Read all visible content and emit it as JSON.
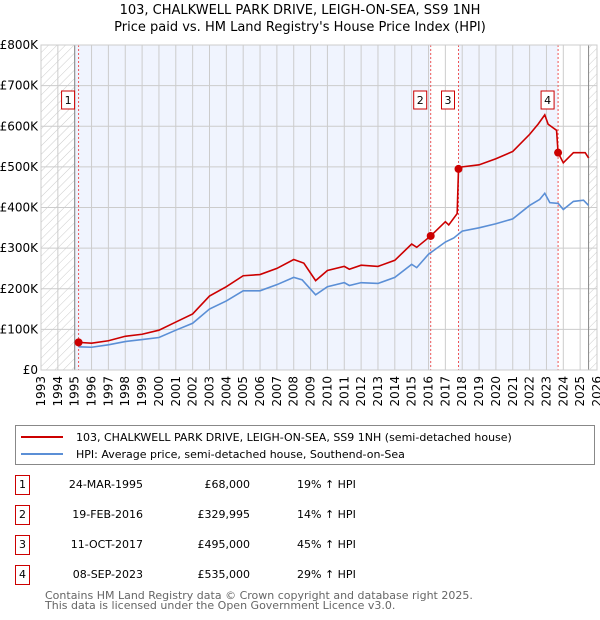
{
  "title": "103, CHALKWELL PARK DRIVE, LEIGH-ON-SEA, SS9 1NH",
  "subtitle": "Price paid vs. HM Land Registry's House Price Index (HPI)",
  "colors": {
    "property": "#cc0000",
    "hpi": "#5b8fd6",
    "shade": "#f0f4fe"
  },
  "chart_data": {
    "type": "line",
    "xlim": [
      1993,
      2026
    ],
    "ylim": [
      0,
      800000
    ],
    "x_ticks": [
      "1993",
      "1994",
      "1995",
      "1996",
      "1997",
      "1998",
      "1999",
      "2000",
      "2001",
      "2002",
      "2003",
      "2004",
      "2005",
      "2006",
      "2007",
      "2008",
      "2009",
      "2010",
      "2011",
      "2012",
      "2013",
      "2014",
      "2015",
      "2016",
      "2017",
      "2018",
      "2019",
      "2020",
      "2021",
      "2022",
      "2023",
      "2024",
      "2025",
      "2026"
    ],
    "y_ticks": [
      {
        "v": 0,
        "label": "£0"
      },
      {
        "v": 100000,
        "label": "£100K"
      },
      {
        "v": 200000,
        "label": "£200K"
      },
      {
        "v": 300000,
        "label": "£300K"
      },
      {
        "v": 400000,
        "label": "£400K"
      },
      {
        "v": 500000,
        "label": "£500K"
      },
      {
        "v": 600000,
        "label": "£600K"
      },
      {
        "v": 700000,
        "label": "£700K"
      },
      {
        "v": 800000,
        "label": "£800K"
      }
    ],
    "series": [
      {
        "name": "103, CHALKWELL PARK DRIVE, LEIGH-ON-SEA, SS9 1NH (semi-detached house)",
        "color": "#cc0000",
        "x": [
          1995.23,
          1996,
          1997,
          1998,
          1999,
          2000,
          2001,
          2002,
          2003,
          2004,
          2005,
          2006,
          2007,
          2008,
          2008.6,
          2009.3,
          2010,
          2011,
          2011.3,
          2012,
          2013,
          2014,
          2015,
          2015.3,
          2016.13,
          2017,
          2017.2,
          2017.7,
          2017.78,
          2018,
          2019,
          2020,
          2021,
          2022,
          2022.5,
          2022.9,
          2023.1,
          2023.6,
          2023.69,
          2024,
          2024.6,
          2025.3,
          2025.5
        ],
        "y": [
          68000,
          66000,
          72000,
          83000,
          88000,
          98000,
          118000,
          138000,
          182000,
          205000,
          232000,
          235000,
          250000,
          272000,
          263000,
          220000,
          245000,
          255000,
          248000,
          258000,
          255000,
          270000,
          310000,
          302000,
          329995,
          365000,
          357000,
          385000,
          495000,
          500000,
          505000,
          520000,
          538000,
          580000,
          605000,
          628000,
          605000,
          590000,
          535000,
          510000,
          535000,
          535000,
          522000
        ]
      },
      {
        "name": "HPI: Average price, semi-detached house, Southend-on-Sea",
        "color": "#5b8fd6",
        "x": [
          1995.23,
          1996,
          1997,
          1998,
          1999,
          2000,
          2001,
          2002,
          2003,
          2004,
          2005,
          2006,
          2007,
          2008,
          2008.5,
          2009.3,
          2010,
          2011,
          2011.3,
          2012,
          2013,
          2014,
          2015,
          2015.3,
          2016,
          2017,
          2017.5,
          2018,
          2019,
          2020,
          2021,
          2022,
          2022.6,
          2022.9,
          2023.2,
          2023.7,
          2024,
          2024.6,
          2025.2,
          2025.5
        ],
        "y": [
          57000,
          56000,
          62000,
          70000,
          75000,
          80000,
          98000,
          115000,
          150000,
          170000,
          195000,
          195000,
          210000,
          228000,
          222000,
          185000,
          205000,
          215000,
          208000,
          215000,
          213000,
          228000,
          260000,
          252000,
          285000,
          315000,
          325000,
          342000,
          350000,
          360000,
          372000,
          405000,
          420000,
          435000,
          412000,
          410000,
          395000,
          415000,
          418000,
          405000
        ]
      }
    ],
    "sales": [
      {
        "label": "1",
        "x": 1995.23,
        "price": 68000
      },
      {
        "label": "2",
        "x": 2016.13,
        "price": 329995
      },
      {
        "label": "3",
        "x": 2017.78,
        "price": 495000
      },
      {
        "label": "4",
        "x": 2023.69,
        "price": 535000
      }
    ],
    "legend_placement": "below"
  },
  "legend": {
    "property": "103, CHALKWELL PARK DRIVE, LEIGH-ON-SEA, SS9 1NH (semi-detached house)",
    "hpi": "HPI: Average price, semi-detached house, Southend-on-Sea"
  },
  "transactions": [
    {
      "num": "1",
      "date": "24-MAR-1995",
      "price": "£68,000",
      "hpi": "19% ↑ HPI"
    },
    {
      "num": "2",
      "date": "19-FEB-2016",
      "price": "£329,995",
      "hpi": "14% ↑ HPI"
    },
    {
      "num": "3",
      "date": "11-OCT-2017",
      "price": "£495,000",
      "hpi": "45% ↑ HPI"
    },
    {
      "num": "4",
      "date": "08-SEP-2023",
      "price": "£535,000",
      "hpi": "29% ↑ HPI"
    }
  ],
  "footer": {
    "line1": "Contains HM Land Registry data © Crown copyright and database right 2025.",
    "line2": "This data is licensed under the Open Government Licence v3.0."
  }
}
